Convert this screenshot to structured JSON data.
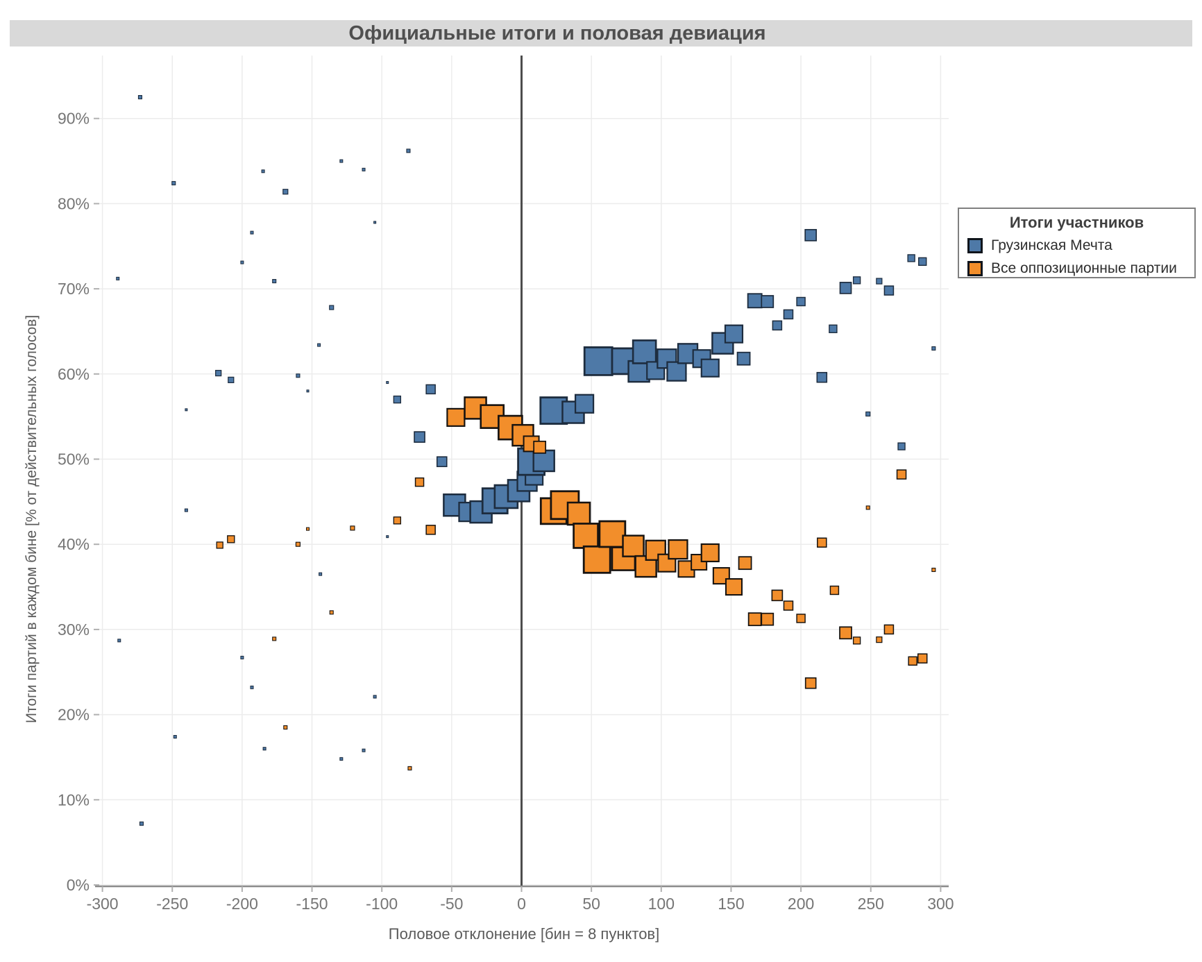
{
  "title": "Официальные итоги и половая девиация",
  "axes": {
    "x": {
      "label": "Половое отклонение [бин = 8 пунктов]",
      "ticks": [
        -300,
        -250,
        -200,
        -150,
        -100,
        -50,
        0,
        50,
        100,
        150,
        200,
        250,
        300
      ],
      "tick_labels": [
        "-300",
        "-250",
        "-200",
        "-150",
        "-100",
        "-50",
        "0",
        "50",
        "100",
        "150",
        "200",
        "250",
        "300"
      ]
    },
    "y": {
      "label": "Итоги партий в каждом бине  [% от действительных голосов]",
      "ticks": [
        0,
        10,
        20,
        30,
        40,
        50,
        60,
        70,
        80,
        90
      ],
      "tick_labels": [
        "0%",
        "10%",
        "20%",
        "30%",
        "40%",
        "50%",
        "60%",
        "70%",
        "80%",
        "90%"
      ]
    }
  },
  "legend": {
    "title": "Итоги участников",
    "items": [
      {
        "label": "Грузинская Мечта",
        "color": "#4e79a7"
      },
      {
        "label": "Все оппозиционные партии",
        "color": "#f28e2b"
      }
    ]
  },
  "colors": {
    "blue_fill": "#4e79a7",
    "blue_stroke": "#1d2c3e",
    "orange_fill": "#f28e2b",
    "orange_stroke": "#171310",
    "grid": "#ececec",
    "zero_line": "#4d4d4d",
    "axis_line": "#8c8c8c",
    "tick_mark": "#b0b0b0",
    "tick_text": "#757575",
    "titlebar_bg": "#d9d9d9",
    "title_text": "#4f4f4f"
  },
  "chart_data": {
    "type": "scatter",
    "title": "Официальные итоги и половая девиация",
    "xlabel": "Половое отклонение [бин = 8 пунктов]",
    "ylabel": "Итоги партий в каждом бине  [% от действительных голосов]",
    "xlim": [
      -303,
      306
    ],
    "ylim": [
      0,
      97.5
    ],
    "grid": true,
    "legend_position": "right-outside",
    "marker": "square",
    "point_format": [
      "x_deviation_points",
      "percent_of_valid_votes",
      "marker_size_px"
    ],
    "series": [
      {
        "name": "Грузинская Мечта",
        "color": "#4e79a7",
        "points": [
          [
            -273,
            92.5,
            5
          ],
          [
            -249,
            82.4,
            5
          ],
          [
            -289,
            71.2,
            4
          ],
          [
            -240,
            55.8,
            3
          ],
          [
            -240,
            44.0,
            4
          ],
          [
            -248,
            17.4,
            4
          ],
          [
            -272,
            7.2,
            5
          ],
          [
            -288,
            28.7,
            4
          ],
          [
            -217,
            60.1,
            8
          ],
          [
            -208,
            59.3,
            8
          ],
          [
            -200,
            73.1,
            4
          ],
          [
            -193,
            76.6,
            4
          ],
          [
            -185,
            83.8,
            4
          ],
          [
            -169,
            81.4,
            7
          ],
          [
            -177,
            70.9,
            5
          ],
          [
            -160,
            59.8,
            5
          ],
          [
            -153,
            58.0,
            3
          ],
          [
            -145,
            63.4,
            4
          ],
          [
            -136,
            67.8,
            6
          ],
          [
            -129,
            85.0,
            4
          ],
          [
            -113,
            84.0,
            4
          ],
          [
            -105,
            77.8,
            3
          ],
          [
            -96,
            59.0,
            3
          ],
          [
            -96,
            40.9,
            3
          ],
          [
            -81,
            86.2,
            5
          ],
          [
            -89,
            57.0,
            10
          ],
          [
            -65,
            58.2,
            13
          ],
          [
            -73,
            52.6,
            15
          ],
          [
            -57,
            49.7,
            14
          ],
          [
            -144,
            36.5,
            4
          ],
          [
            -200,
            26.7,
            4
          ],
          [
            -193,
            23.2,
            4
          ],
          [
            -105,
            22.1,
            4
          ],
          [
            -184,
            16.0,
            4
          ],
          [
            -113,
            15.8,
            4
          ],
          [
            -129,
            14.8,
            4
          ],
          [
            -48,
            44.6,
            31
          ],
          [
            -38,
            43.8,
            27
          ],
          [
            -29,
            43.8,
            31
          ],
          [
            -19,
            45.1,
            36
          ],
          [
            -11,
            45.6,
            33
          ],
          [
            -2,
            46.3,
            31
          ],
          [
            4,
            47.4,
            28
          ],
          [
            9,
            48.0,
            25
          ],
          [
            7,
            49.7,
            38
          ],
          [
            16,
            49.8,
            30
          ],
          [
            23,
            55.7,
            38
          ],
          [
            37,
            55.5,
            31
          ],
          [
            45,
            56.5,
            26
          ],
          [
            55,
            61.5,
            40
          ],
          [
            74,
            61.5,
            37
          ],
          [
            84,
            60.3,
            30
          ],
          [
            88,
            62.6,
            33
          ],
          [
            96,
            60.4,
            25
          ],
          [
            104,
            61.8,
            27
          ],
          [
            111,
            60.3,
            27
          ],
          [
            119,
            62.4,
            28
          ],
          [
            129,
            61.8,
            25
          ],
          [
            135,
            60.7,
            25
          ],
          [
            144,
            63.6,
            30
          ],
          [
            152,
            64.7,
            25
          ],
          [
            159,
            61.8,
            18
          ],
          [
            167,
            68.6,
            20
          ],
          [
            176,
            68.5,
            17
          ],
          [
            183,
            65.7,
            13
          ],
          [
            191,
            67.0,
            13
          ],
          [
            200,
            68.5,
            12
          ],
          [
            207,
            76.3,
            16
          ],
          [
            232,
            70.1,
            16
          ],
          [
            240,
            71.0,
            10
          ],
          [
            256,
            70.9,
            8
          ],
          [
            263,
            69.8,
            13
          ],
          [
            279,
            73.6,
            10
          ],
          [
            287,
            73.2,
            11
          ],
          [
            223,
            65.3,
            11
          ],
          [
            215,
            59.6,
            14
          ],
          [
            248,
            55.3,
            6
          ],
          [
            272,
            51.5,
            10
          ],
          [
            295,
            63.0,
            5
          ]
        ]
      },
      {
        "name": "Все оппозиционные партии",
        "color": "#f28e2b",
        "points": [
          [
            -216,
            39.9,
            9
          ],
          [
            -208,
            40.6,
            10
          ],
          [
            -160,
            40.0,
            6
          ],
          [
            -153,
            41.8,
            4
          ],
          [
            -121,
            41.9,
            6
          ],
          [
            -136,
            32.0,
            5
          ],
          [
            -177,
            28.9,
            5
          ],
          [
            -169,
            18.5,
            5
          ],
          [
            -80,
            13.7,
            5
          ],
          [
            -89,
            42.8,
            10
          ],
          [
            -65,
            41.7,
            13
          ],
          [
            -73,
            47.3,
            12
          ],
          [
            -47,
            54.9,
            25
          ],
          [
            -33,
            56.0,
            31
          ],
          [
            -21,
            55.0,
            33
          ],
          [
            -8,
            53.7,
            34
          ],
          [
            1,
            52.8,
            30
          ],
          [
            7,
            51.8,
            22
          ],
          [
            13,
            51.4,
            17
          ],
          [
            23,
            43.9,
            37
          ],
          [
            31,
            44.6,
            40
          ],
          [
            41,
            43.6,
            32
          ],
          [
            46,
            41.0,
            35
          ],
          [
            54,
            38.2,
            38
          ],
          [
            65,
            41.2,
            37
          ],
          [
            73,
            38.3,
            33
          ],
          [
            80,
            39.8,
            30
          ],
          [
            89,
            37.4,
            30
          ],
          [
            96,
            39.3,
            28
          ],
          [
            104,
            37.8,
            25
          ],
          [
            112,
            39.4,
            27
          ],
          [
            118,
            37.1,
            23
          ],
          [
            127,
            37.9,
            22
          ],
          [
            135,
            39.0,
            25
          ],
          [
            143,
            36.3,
            23
          ],
          [
            152,
            35.0,
            23
          ],
          [
            160,
            37.8,
            18
          ],
          [
            167,
            31.2,
            18
          ],
          [
            176,
            31.2,
            17
          ],
          [
            183,
            34.0,
            15
          ],
          [
            191,
            32.8,
            13
          ],
          [
            200,
            31.3,
            12
          ],
          [
            215,
            40.2,
            13
          ],
          [
            224,
            34.6,
            12
          ],
          [
            232,
            29.6,
            17
          ],
          [
            240,
            28.7,
            10
          ],
          [
            256,
            28.8,
            8
          ],
          [
            263,
            30.0,
            13
          ],
          [
            272,
            48.2,
            13
          ],
          [
            248,
            44.3,
            5
          ],
          [
            280,
            26.3,
            12
          ],
          [
            287,
            26.6,
            13
          ],
          [
            295,
            37.0,
            5
          ],
          [
            207,
            23.7,
            15
          ]
        ]
      }
    ]
  }
}
